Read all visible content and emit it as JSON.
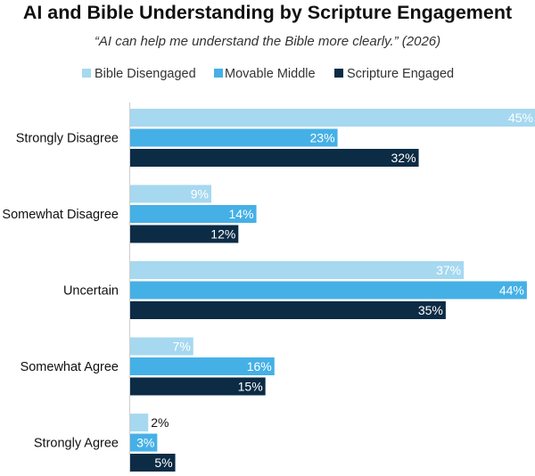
{
  "chart_data": {
    "type": "bar",
    "orientation": "horizontal",
    "title": "AI and Bible Understanding by Scripture Engagement",
    "subtitle": "“AI can help me understand the Bible more clearly.” (2026)",
    "categories": [
      "Strongly Disagree",
      "Somewhat Disagree",
      "Uncertain",
      "Somewhat Agree",
      "Strongly Agree"
    ],
    "series": [
      {
        "name": "Bible Disengaged",
        "color": "#a6d8f0",
        "values": [
          45,
          9,
          37,
          7,
          2
        ]
      },
      {
        "name": "Movable Middle",
        "color": "#45b0e6",
        "values": [
          23,
          14,
          44,
          16,
          3
        ]
      },
      {
        "name": "Scripture Engaged",
        "color": "#0c2b45",
        "values": [
          32,
          12,
          35,
          15,
          5
        ]
      }
    ],
    "value_suffix": "%",
    "xlim": [
      0,
      45
    ],
    "grid": false,
    "legend": "top"
  }
}
